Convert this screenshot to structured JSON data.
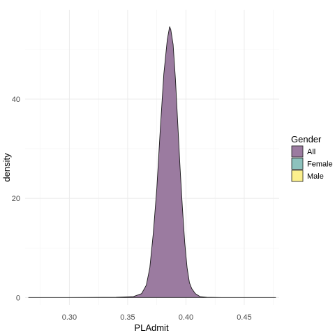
{
  "chart_data": {
    "type": "area",
    "title": "",
    "xlabel": "PLAdmit",
    "ylabel": "density",
    "xlim": [
      0.262,
      0.48
    ],
    "ylim": [
      -1.5,
      58
    ],
    "x_ticks": [
      0.3,
      0.35,
      0.4,
      0.45
    ],
    "x_tick_labels": [
      "0.30",
      "0.35",
      "0.40",
      "0.45"
    ],
    "y_ticks": [
      0,
      20,
      40
    ],
    "y_tick_labels": [
      "0",
      "20",
      "40"
    ],
    "grid": true,
    "legend": {
      "title": "Gender",
      "position": "right",
      "entries": [
        {
          "label": "All",
          "color": "#9b7ba0"
        },
        {
          "label": "Female",
          "color": "#8dc2bd"
        },
        {
          "label": "Male",
          "color": "#fbef8d"
        }
      ]
    },
    "series": [
      {
        "name": "All",
        "color": "#9b7ba0",
        "x": [
          0.265,
          0.3,
          0.34,
          0.355,
          0.362,
          0.366,
          0.369,
          0.372,
          0.375,
          0.378,
          0.381,
          0.384,
          0.386,
          0.387,
          0.389,
          0.391,
          0.393,
          0.395,
          0.397,
          0.399,
          0.401,
          0.403,
          0.405,
          0.408,
          0.412,
          0.418,
          0.43,
          0.45,
          0.477
        ],
        "y": [
          0,
          0,
          0.05,
          0.2,
          0.8,
          2.5,
          6,
          13,
          22,
          34,
          45,
          52,
          54.6,
          54,
          51,
          44,
          35,
          26,
          18,
          11,
          6,
          3,
          1.8,
          0.8,
          0.2,
          0.05,
          0,
          0,
          0
        ]
      }
    ]
  }
}
